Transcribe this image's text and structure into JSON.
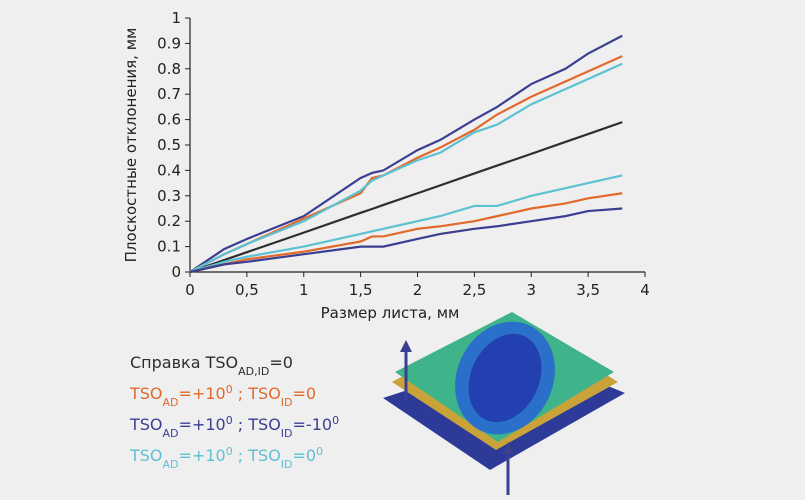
{
  "chart_data": {
    "type": "line",
    "x_label": "Размер листа, мм",
    "y_label": "Плоскостные отклонения, мм",
    "x": [
      0,
      0.3,
      0.5,
      1,
      1.5,
      1.6,
      1.7,
      2,
      2.2,
      2.5,
      2.7,
      3,
      3.3,
      3.5,
      3.8
    ],
    "series": [
      {
        "color": "#2e2e2e",
        "values": [
          0,
          0.047,
          0.078,
          0.155,
          0.233,
          0.248,
          0.264,
          0.31,
          0.341,
          0.388,
          0.419,
          0.465,
          0.512,
          0.543,
          0.59
        ]
      },
      {
        "color": "#3b3f92",
        "values": [
          0,
          0.09,
          0.13,
          0.22,
          0.37,
          0.39,
          0.4,
          0.48,
          0.52,
          0.6,
          0.65,
          0.74,
          0.8,
          0.86,
          0.93
        ]
      },
      {
        "color": "#e2692c",
        "values": [
          0,
          0.07,
          0.11,
          0.21,
          0.31,
          0.37,
          0.38,
          0.45,
          0.49,
          0.56,
          0.62,
          0.69,
          0.75,
          0.79,
          0.85
        ]
      },
      {
        "color": "#5cc1d2",
        "values": [
          0,
          0.07,
          0.11,
          0.2,
          0.32,
          0.36,
          0.38,
          0.44,
          0.47,
          0.55,
          0.58,
          0.66,
          0.72,
          0.76,
          0.82
        ]
      },
      {
        "color": "#5cc1d2",
        "values": [
          0,
          0.04,
          0.06,
          0.1,
          0.15,
          0.16,
          0.17,
          0.2,
          0.22,
          0.26,
          0.26,
          0.3,
          0.33,
          0.35,
          0.38
        ]
      },
      {
        "color": "#e2692c",
        "values": [
          0,
          0.03,
          0.05,
          0.08,
          0.12,
          0.14,
          0.14,
          0.17,
          0.18,
          0.2,
          0.22,
          0.25,
          0.27,
          0.29,
          0.31
        ]
      },
      {
        "color": "#3b3f92",
        "values": [
          0,
          0.03,
          0.04,
          0.07,
          0.1,
          0.1,
          0.1,
          0.13,
          0.15,
          0.17,
          0.18,
          0.2,
          0.22,
          0.24,
          0.25
        ]
      }
    ],
    "xlim": [
      0,
      4
    ],
    "xticks": [
      0,
      {
        "value": 0.5,
        "label": "0,5"
      },
      1,
      {
        "value": 1.5,
        "label": "1,5"
      },
      2,
      {
        "value": 2.5,
        "label": "2,5"
      },
      3,
      {
        "value": 3.5,
        "label": "3,5"
      },
      4
    ],
    "ylim": [
      0,
      1
    ],
    "yticks": [
      0,
      0.1,
      0.2,
      0.3,
      0.4,
      0.5,
      0.6,
      0.7,
      0.8,
      0.9,
      1
    ],
    "legend": [
      {
        "color": "#2e2e2e",
        "parts": [
          {
            "text": "Справка TSO"
          },
          {
            "text": "AD,ID",
            "sub": true
          },
          {
            "text": "=0"
          }
        ]
      },
      {
        "color": "#e2692c",
        "parts": [
          {
            "text": "TSO"
          },
          {
            "text": "AD",
            "sub": true
          },
          {
            "text": "=+10"
          },
          {
            "text": "0",
            "sup": true
          },
          {
            "text": " ; TSO"
          },
          {
            "text": "ID",
            "sub": true
          },
          {
            "text": "=0"
          }
        ]
      },
      {
        "color": "#3b3f92",
        "parts": [
          {
            "text": "TSO"
          },
          {
            "text": "AD",
            "sub": true
          },
          {
            "text": "=+10"
          },
          {
            "text": "0",
            "sup": true
          },
          {
            "text": " ; TSO"
          },
          {
            "text": "ID",
            "sub": true
          },
          {
            "text": "=-10"
          },
          {
            "text": "0",
            "sup": true
          }
        ]
      },
      {
        "color": "#5cc1d2",
        "parts": [
          {
            "text": "TSO"
          },
          {
            "text": "AD",
            "sub": true
          },
          {
            "text": "=+10"
          },
          {
            "text": "0",
            "sup": true
          },
          {
            "text": " ; TSO"
          },
          {
            "text": "ID",
            "sub": true
          },
          {
            "text": "=0"
          },
          {
            "text": "0",
            "sup": true
          }
        ]
      }
    ]
  }
}
